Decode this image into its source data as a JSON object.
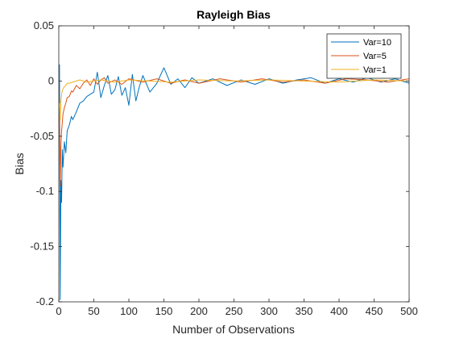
{
  "chart_data": {
    "type": "line",
    "title": "Rayleigh Bias",
    "xlabel": "Number of Observations",
    "ylabel": "Bias",
    "xlim": [
      0,
      500
    ],
    "ylim": [
      -0.2,
      0.05
    ],
    "xticks": [
      0,
      50,
      100,
      150,
      200,
      250,
      300,
      350,
      400,
      450,
      500
    ],
    "xtick_labels": [
      "0",
      "50",
      "100",
      "150",
      "200",
      "250",
      "300",
      "350",
      "400",
      "450",
      "500"
    ],
    "yticks": [
      -0.2,
      -0.15,
      -0.1,
      -0.05,
      0,
      0.05
    ],
    "ytick_labels": [
      "-0.2",
      "-0.15",
      "-0.1",
      "-0.05",
      "0",
      "0.05"
    ],
    "grid": false,
    "box": true,
    "legend": {
      "location": "top-right"
    },
    "series": [
      {
        "name": "Var=10",
        "color": "#0072BD",
        "x": [
          1,
          2,
          3,
          4,
          5,
          6,
          8,
          10,
          12,
          15,
          18,
          20,
          25,
          30,
          35,
          40,
          45,
          50,
          55,
          60,
          65,
          70,
          75,
          80,
          85,
          90,
          95,
          100,
          105,
          110,
          115,
          120,
          130,
          140,
          150,
          160,
          170,
          180,
          190,
          200,
          220,
          240,
          260,
          280,
          300,
          320,
          340,
          360,
          380,
          400,
          420,
          440,
          460,
          480,
          500
        ],
        "y": [
          0.015,
          -0.198,
          -0.09,
          -0.11,
          -0.062,
          -0.078,
          -0.055,
          -0.065,
          -0.045,
          -0.04,
          -0.032,
          -0.035,
          -0.028,
          -0.02,
          -0.018,
          -0.014,
          -0.012,
          -0.01,
          0.008,
          -0.015,
          -0.004,
          0.005,
          -0.012,
          -0.008,
          0.004,
          -0.013,
          -0.006,
          -0.022,
          0.006,
          -0.018,
          -0.005,
          0.005,
          -0.01,
          -0.002,
          0.012,
          -0.003,
          0.002,
          -0.006,
          0.003,
          -0.002,
          0.002,
          -0.004,
          0.001,
          -0.003,
          0.002,
          -0.002,
          0.001,
          0.003,
          -0.002,
          0.002,
          -0.001,
          0.003,
          -0.001,
          0.002,
          -0.002
        ]
      },
      {
        "name": "Var=5",
        "color": "#D95319",
        "x": [
          1,
          2,
          3,
          4,
          5,
          6,
          8,
          10,
          12,
          15,
          18,
          20,
          25,
          30,
          35,
          40,
          45,
          50,
          55,
          60,
          65,
          70,
          80,
          90,
          100,
          120,
          140,
          160,
          180,
          200,
          230,
          260,
          290,
          320,
          350,
          380,
          410,
          440,
          470,
          500
        ],
        "y": [
          -0.03,
          -0.095,
          -0.06,
          -0.045,
          -0.038,
          -0.03,
          -0.024,
          -0.02,
          -0.015,
          -0.014,
          -0.009,
          -0.01,
          -0.004,
          -0.007,
          -0.002,
          0.001,
          -0.004,
          0.002,
          -0.003,
          0.001,
          0.003,
          -0.002,
          0.001,
          -0.003,
          0.002,
          -0.001,
          0.002,
          -0.002,
          0.001,
          -0.002,
          0.002,
          -0.001,
          0.002,
          -0.001,
          0.001,
          -0.002,
          0.002,
          0.001,
          -0.001,
          0.002
        ]
      },
      {
        "name": "Var=1",
        "color": "#EDB120",
        "x": [
          1,
          2,
          3,
          4,
          5,
          6,
          8,
          10,
          12,
          15,
          20,
          25,
          30,
          40,
          50,
          60,
          80,
          100,
          130,
          160,
          200,
          250,
          300,
          350,
          400,
          450,
          500
        ],
        "y": [
          -0.02,
          -0.035,
          -0.018,
          -0.012,
          -0.009,
          -0.007,
          -0.005,
          -0.004,
          -0.002,
          -0.002,
          -0.001,
          0.0,
          0.001,
          -0.001,
          0.0,
          0.001,
          -0.001,
          0.001,
          0.0,
          -0.001,
          0.001,
          0.0,
          0.001,
          0.0,
          -0.001,
          0.001,
          0.0
        ]
      }
    ]
  }
}
